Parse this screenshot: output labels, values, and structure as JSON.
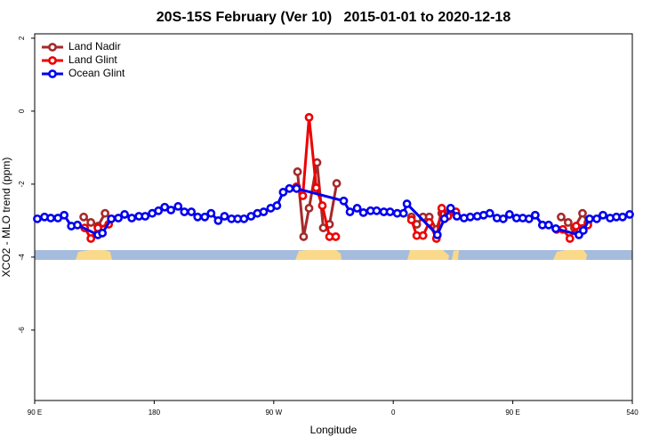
{
  "chart_data": {
    "type": "line",
    "title": "20S-15S February (Ver 10)   2015-01-01 to 2020-12-18",
    "x_label": "Longitude",
    "y_label": "XCO2 - MLO trend (ppm)",
    "xlim": [
      90,
      540
    ],
    "xticks": [
      {
        "value": 90,
        "label": "90 E"
      },
      180,
      {
        "value": 270,
        "label": "90 W"
      },
      {
        "value": 360,
        "label": "0"
      },
      {
        "value": 450,
        "label": "90 E"
      },
      540
    ],
    "ylim": [
      -7.93,
      2.12
    ],
    "yticks": [
      -6,
      -4,
      -2,
      0,
      2
    ],
    "legend": "top-left",
    "series": [
      {
        "name": "Land Nadir",
        "color": "#a52a2a",
        "x": [
          126.9,
          132.3,
          137.6,
          143.0,
          null,
          287.9,
          292.5,
          296.6,
          302.6,
          307.3,
          312.0,
          317.4,
          null,
          373.7,
          377.7,
          382.4,
          387.1,
          392.5,
          396.5,
          401.2,
          407.2,
          null,
          486.4,
          491.7,
          496.4,
          502.5,
          506.5
        ],
        "values": [
          -2.9,
          -3.05,
          -3.15,
          -2.8,
          null,
          -1.66,
          -3.44,
          -2.66,
          -1.41,
          -3.2,
          -3.1,
          -1.98,
          null,
          -2.9,
          -3.1,
          -2.9,
          -2.9,
          -3.24,
          -2.8,
          -2.8,
          -2.8,
          null,
          -2.9,
          -3.05,
          -3.2,
          -2.8,
          -3.05
        ]
      },
      {
        "name": "Land Glint",
        "color": "#ee0000",
        "x": [
          127.6,
          132.3,
          137.6,
          145.7,
          null,
          287.2,
          291.9,
          296.6,
          302.0,
          306.6,
          312.0,
          316.7,
          null,
          373.7,
          377.7,
          382.4,
          387.1,
          392.5,
          396.5,
          401.2,
          407.2,
          null,
          483.0,
          487.7,
          493.0,
          497.7,
          506.5
        ],
        "values": [
          -3.2,
          -3.49,
          -3.2,
          -3.1,
          null,
          -2.07,
          -2.32,
          -0.17,
          -2.1,
          -2.59,
          -3.44,
          -3.44,
          null,
          -2.98,
          -3.41,
          -3.41,
          -3.05,
          -3.49,
          -2.66,
          -2.88,
          -2.76,
          null,
          -3.24,
          -3.24,
          -3.49,
          -3.15,
          -3.12
        ]
      },
      {
        "name": "Ocean Glint",
        "color": "#0000ee",
        "x": [
          92.0,
          97.4,
          102.1,
          107.5,
          112.2,
          117.6,
          122.2,
          137.6,
          141.0,
          147.7,
          153.0,
          157.7,
          163.1,
          168.5,
          173.2,
          178.5,
          183.2,
          187.9,
          192.6,
          198.0,
          202.7,
          208.0,
          212.7,
          218.1,
          222.8,
          228.2,
          232.9,
          238.2,
          242.9,
          247.6,
          252.9,
          257.7,
          262.4,
          267.7,
          272.4,
          277.1,
          281.8,
          287.2,
          322.7,
          327.4,
          332.8,
          337.5,
          342.9,
          347.5,
          352.9,
          357.6,
          363.0,
          367.7,
          370.3,
          393.2,
          398.5,
          403.2,
          407.9,
          413.3,
          418.0,
          423.3,
          428.0,
          432.7,
          438.1,
          442.8,
          447.5,
          452.8,
          457.5,
          462.2,
          466.9,
          472.3,
          477.0,
          482.4,
          499.8,
          503.1,
          507.8,
          513.2,
          517.9,
          523.3,
          528.0,
          532.7,
          538.0
        ],
        "values": [
          -2.95,
          -2.9,
          -2.93,
          -2.93,
          -2.85,
          -3.15,
          -3.12,
          -3.39,
          -3.34,
          -2.95,
          -2.93,
          -2.83,
          -2.93,
          -2.88,
          -2.88,
          -2.8,
          -2.73,
          -2.63,
          -2.71,
          -2.61,
          -2.76,
          -2.76,
          -2.9,
          -2.9,
          -2.8,
          -3.0,
          -2.88,
          -2.95,
          -2.95,
          -2.95,
          -2.88,
          -2.8,
          -2.76,
          -2.66,
          -2.59,
          -2.22,
          -2.12,
          -2.12,
          -2.46,
          -2.76,
          -2.66,
          -2.78,
          -2.73,
          -2.73,
          -2.76,
          -2.76,
          -2.8,
          -2.8,
          -2.54,
          -3.39,
          -2.95,
          -2.66,
          -2.88,
          -2.93,
          -2.9,
          -2.88,
          -2.85,
          -2.8,
          -2.93,
          -2.95,
          -2.83,
          -2.93,
          -2.93,
          -2.95,
          -2.85,
          -3.12,
          -3.12,
          -3.22,
          -3.39,
          -3.27,
          -2.95,
          -2.95,
          -2.85,
          -2.93,
          -2.9,
          -2.9,
          -2.83
        ]
      }
    ]
  }
}
